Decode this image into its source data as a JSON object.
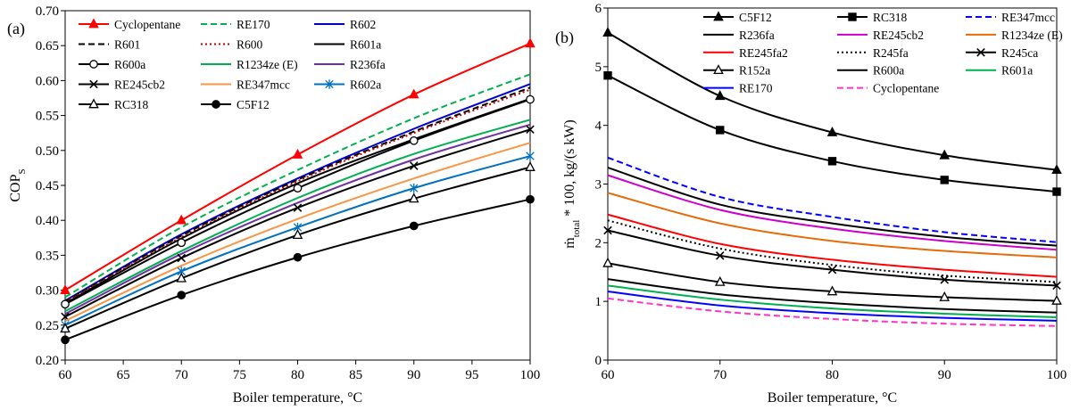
{
  "chart_data": [
    {
      "type": "line",
      "panel_label": "(a)",
      "xlabel": "Boiler temperature, °C",
      "ylabel_main": "COP",
      "ylabel_sub": "S",
      "xlim": [
        60,
        100
      ],
      "ylim": [
        0.2,
        0.7
      ],
      "xticks": [
        60,
        65,
        70,
        75,
        80,
        85,
        90,
        95,
        100
      ],
      "yticks": [
        0.2,
        0.25,
        0.3,
        0.35,
        0.4,
        0.45,
        0.5,
        0.55,
        0.6,
        0.65,
        0.7
      ],
      "x": [
        60,
        70,
        80,
        90,
        100
      ],
      "legend_columns": 3,
      "series": [
        {
          "name": "Cyclopentane",
          "color": "#ff0000",
          "dash": "solid",
          "marker": "triangle-filled",
          "values": [
            0.3,
            0.4,
            0.494,
            0.58,
            0.653
          ]
        },
        {
          "name": "RE170",
          "color": "#00b050",
          "dash": "dashed",
          "marker": "none",
          "values": [
            0.29,
            0.39,
            0.472,
            0.546,
            0.609
          ]
        },
        {
          "name": "R602",
          "color": "#0000cc",
          "dash": "solid",
          "marker": "none",
          "values": [
            0.285,
            0.38,
            0.46,
            0.531,
            0.595
          ]
        },
        {
          "name": "R601",
          "color": "#000000",
          "dash": "dashed",
          "marker": "none",
          "values": [
            0.284,
            0.378,
            0.458,
            0.527,
            0.59
          ]
        },
        {
          "name": "R600",
          "color": "#c00000",
          "dash": "dotted",
          "marker": "none",
          "values": [
            0.283,
            0.376,
            0.456,
            0.525,
            0.587
          ]
        },
        {
          "name": "R601a",
          "color": "#000000",
          "dash": "solid",
          "marker": "none",
          "values": [
            0.281,
            0.374,
            0.453,
            0.516,
            0.574
          ]
        },
        {
          "name": "R600a",
          "color": "#000000",
          "dash": "solid",
          "marker": "circle-open",
          "values": [
            0.28,
            0.368,
            0.446,
            0.514,
            0.573
          ]
        },
        {
          "name": "R1234ze (E)",
          "color": "#00b050",
          "dash": "solid",
          "marker": "none",
          "values": [
            0.27,
            0.356,
            0.432,
            0.495,
            0.544
          ]
        },
        {
          "name": "R236fa",
          "color": "#7030a0",
          "dash": "solid",
          "marker": "none",
          "values": [
            0.266,
            0.352,
            0.425,
            0.487,
            0.537
          ]
        },
        {
          "name": "RE245cb2",
          "color": "#000000",
          "dash": "solid",
          "marker": "x",
          "values": [
            0.262,
            0.346,
            0.418,
            0.478,
            0.53
          ]
        },
        {
          "name": "RE347mcc",
          "color": "#f79646",
          "dash": "solid",
          "marker": "none",
          "values": [
            0.256,
            0.335,
            0.402,
            0.46,
            0.511
          ]
        },
        {
          "name": "R602a",
          "color": "#0070c0",
          "dash": "solid",
          "marker": "asterisk",
          "values": [
            0.25,
            0.327,
            0.39,
            0.446,
            0.492
          ]
        },
        {
          "name": "RC318",
          "color": "#000000",
          "dash": "solid",
          "marker": "triangle-open",
          "values": [
            0.245,
            0.317,
            0.379,
            0.431,
            0.476
          ]
        },
        {
          "name": "C5F12",
          "color": "#000000",
          "dash": "solid",
          "marker": "circle-filled",
          "values": [
            0.229,
            0.293,
            0.347,
            0.392,
            0.43
          ]
        }
      ]
    },
    {
      "type": "line",
      "panel_label": "(b)",
      "xlabel": "Boiler temperature, °C",
      "ylabel_main": "ṁ",
      "ylabel_sub": "total",
      "ylabel_rest": " * 100, kg/(s kW)",
      "xlim": [
        60,
        100
      ],
      "ylim": [
        0,
        6
      ],
      "xticks": [
        60,
        70,
        80,
        90,
        100
      ],
      "yticks": [
        0,
        1,
        2,
        3,
        4,
        5,
        6
      ],
      "x": [
        60,
        70,
        80,
        90,
        100
      ],
      "legend_columns": 3,
      "series": [
        {
          "name": "C5F12",
          "color": "#000000",
          "dash": "solid",
          "marker": "triangle-filled",
          "values": [
            5.58,
            4.5,
            3.88,
            3.49,
            3.24
          ]
        },
        {
          "name": "RC318",
          "color": "#000000",
          "dash": "solid",
          "marker": "square-filled",
          "values": [
            4.85,
            3.92,
            3.39,
            3.07,
            2.87
          ]
        },
        {
          "name": "RE347mcc",
          "color": "#0000ff",
          "dash": "dashed",
          "marker": "none",
          "values": [
            3.45,
            2.78,
            2.44,
            2.18,
            2.01
          ]
        },
        {
          "name": "R236fa",
          "color": "#000000",
          "dash": "solid",
          "marker": "none",
          "values": [
            3.28,
            2.65,
            2.33,
            2.1,
            1.95
          ]
        },
        {
          "name": "RE245cb2",
          "color": "#cc00cc",
          "dash": "solid",
          "marker": "none",
          "values": [
            3.15,
            2.56,
            2.24,
            2.03,
            1.88
          ]
        },
        {
          "name": "R1234ze (E)",
          "color": "#e46c0a",
          "dash": "solid",
          "marker": "none",
          "values": [
            2.85,
            2.33,
            2.03,
            1.86,
            1.75
          ]
        },
        {
          "name": "RE245fa2",
          "color": "#ff0000",
          "dash": "solid",
          "marker": "none",
          "values": [
            2.48,
            1.98,
            1.71,
            1.54,
            1.42
          ]
        },
        {
          "name": "R245fa",
          "color": "#000000",
          "dash": "dotted",
          "marker": "none",
          "values": [
            2.38,
            1.9,
            1.62,
            1.44,
            1.33
          ]
        },
        {
          "name": "R245ca",
          "color": "#000000",
          "dash": "solid",
          "marker": "x",
          "values": [
            2.21,
            1.78,
            1.54,
            1.37,
            1.27
          ]
        },
        {
          "name": "R152a",
          "color": "#000000",
          "dash": "solid",
          "marker": "triangle-open",
          "values": [
            1.65,
            1.33,
            1.17,
            1.07,
            1.01
          ]
        },
        {
          "name": "R600a",
          "color": "#000000",
          "dash": "solid",
          "marker": "none",
          "values": [
            1.38,
            1.12,
            0.97,
            0.87,
            0.81
          ]
        },
        {
          "name": "R601a",
          "color": "#00b050",
          "dash": "solid",
          "marker": "none",
          "values": [
            1.27,
            1.03,
            0.88,
            0.79,
            0.73
          ]
        },
        {
          "name": "RE170",
          "color": "#0000ff",
          "dash": "solid",
          "marker": "none",
          "values": [
            1.17,
            0.93,
            0.8,
            0.72,
            0.67
          ]
        },
        {
          "name": "Cyclopentane",
          "color": "#ff33cc",
          "dash": "dashed",
          "marker": "none",
          "values": [
            1.05,
            0.83,
            0.7,
            0.62,
            0.58
          ]
        }
      ]
    }
  ]
}
